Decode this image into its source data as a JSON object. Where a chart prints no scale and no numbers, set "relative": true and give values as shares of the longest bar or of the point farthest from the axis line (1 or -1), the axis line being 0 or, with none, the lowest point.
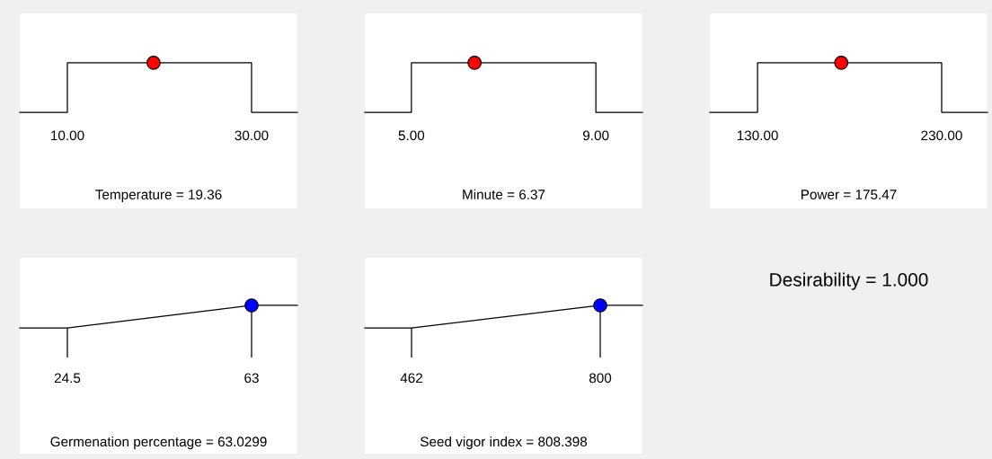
{
  "chart_data": [
    {
      "type": "line",
      "relative": true,
      "tick_labels": "x",
      "xlabel": "Temperature = 19.36",
      "xlim": [
        4.83,
        34.98
      ],
      "xticks": [
        {
          "value": 10,
          "label": "10.00"
        },
        {
          "value": 30,
          "label": "30.00"
        }
      ],
      "series": [
        {
          "type": "line",
          "x": [
            4.83,
            10,
            10,
            30,
            30,
            34.98
          ],
          "values": [
            0,
            0,
            1,
            1,
            0,
            0
          ],
          "color": "#000000",
          "marker": "none"
        },
        {
          "type": "scatter",
          "x": [
            19.36
          ],
          "values": [
            1
          ],
          "color": "#ff0000",
          "marker": "circle"
        }
      ]
    },
    {
      "type": "line",
      "relative": true,
      "tick_labels": "x",
      "xlabel": "Minute = 6.37",
      "xlim": [
        3.99,
        10.01
      ],
      "xticks": [
        {
          "value": 5,
          "label": "5.00"
        },
        {
          "value": 9,
          "label": "9.00"
        }
      ],
      "series": [
        {
          "type": "line",
          "x": [
            3.99,
            5,
            5,
            9,
            9,
            10.01
          ],
          "values": [
            0,
            0,
            1,
            1,
            0,
            0
          ],
          "color": "#000000",
          "marker": "none"
        },
        {
          "type": "scatter",
          "x": [
            6.37
          ],
          "values": [
            1
          ],
          "color": "#ff0000",
          "marker": "circle"
        }
      ]
    },
    {
      "type": "line",
      "relative": true,
      "tick_labels": "x",
      "xlabel": "Power = 175.47",
      "xlim": [
        104.1,
        254.9
      ],
      "xticks": [
        {
          "value": 130,
          "label": "130.00"
        },
        {
          "value": 230,
          "label": "230.00"
        }
      ],
      "series": [
        {
          "type": "line",
          "x": [
            104.1,
            130,
            130,
            230,
            230,
            254.9
          ],
          "values": [
            0,
            0,
            1,
            1,
            0,
            0
          ],
          "color": "#000000",
          "marker": "none"
        },
        {
          "type": "scatter",
          "x": [
            175.47
          ],
          "values": [
            1
          ],
          "color": "#ff0000",
          "marker": "circle"
        }
      ]
    },
    {
      "type": "line",
      "relative": true,
      "tick_labels": "x",
      "xlabel": "Germenation percentage = 63.0299",
      "xlim": [
        14.55,
        72.58
      ],
      "xticks": [
        24.5,
        63
      ],
      "series": [
        {
          "type": "line",
          "x": [
            14.55,
            24.5,
            63,
            72.58
          ],
          "values": [
            0,
            0,
            1,
            1
          ],
          "color": "#000000",
          "marker": "none"
        },
        {
          "type": "scatter",
          "x": [
            63
          ],
          "values": [
            1
          ],
          "color": "#0000ff",
          "marker": "circle"
        }
      ]
    },
    {
      "type": "line",
      "relative": true,
      "tick_labels": "x",
      "xlabel": "Seed vigor index = 808.398",
      "xlim": [
        378.3,
        875.6
      ],
      "xticks": [
        462,
        800
      ],
      "series": [
        {
          "type": "line",
          "x": [
            378.3,
            462,
            800,
            875.6
          ],
          "values": [
            0,
            0,
            1,
            1
          ],
          "color": "#000000",
          "marker": "none"
        },
        {
          "type": "scatter",
          "x": [
            800
          ],
          "values": [
            1
          ],
          "color": "#0000ff",
          "marker": "circle"
        }
      ]
    },
    {
      "type": "other",
      "annotations": [
        "Desirability = 1.000"
      ]
    }
  ]
}
